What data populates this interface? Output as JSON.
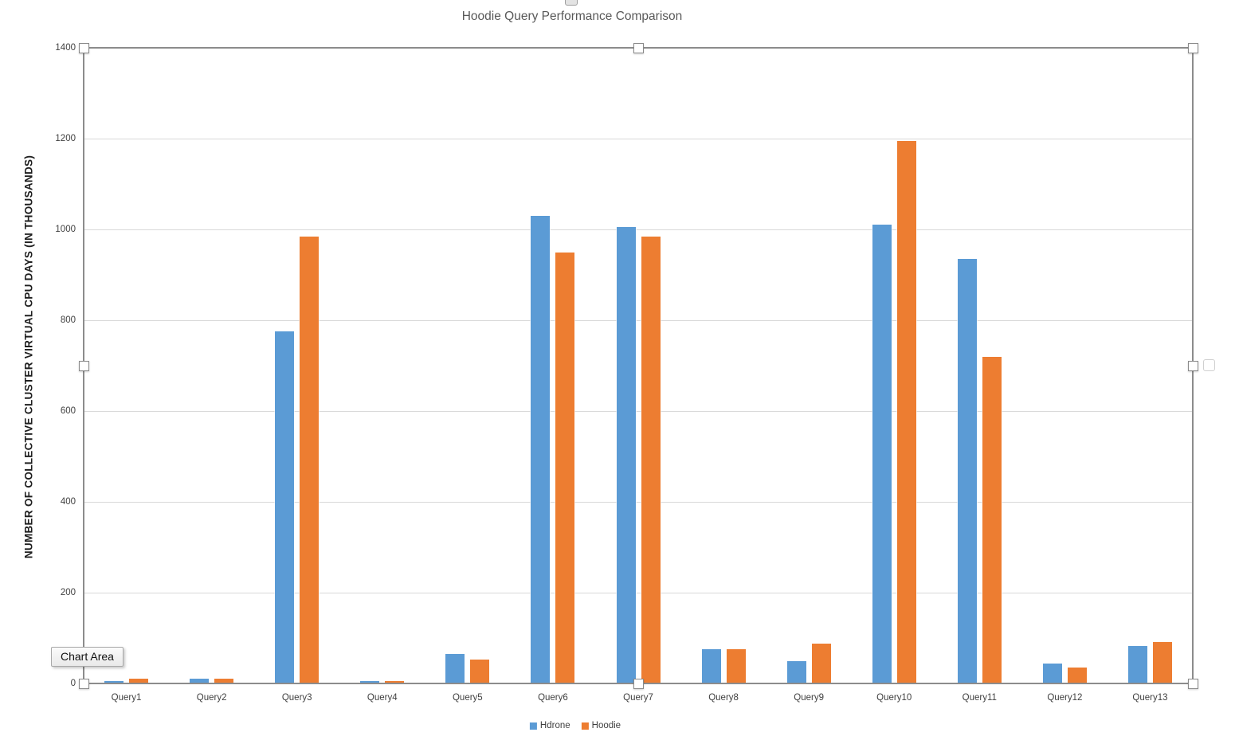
{
  "title": "Hoodie Query Performance Comparison",
  "tooltip": {
    "label": "Chart Area"
  },
  "colors": {
    "hdrone": "#5B9BD5",
    "hoodie": "#ED7D31",
    "title_text": "#595959",
    "axis_text": "#404040",
    "gridline": "#D9D9D9",
    "axis_line": "#7F7F7F",
    "selection_border": "#8C8C8C"
  },
  "chart_data": {
    "type": "bar",
    "title": "Hoodie Query Performance Comparison",
    "xlabel": "",
    "ylabel": "NUMBER OF COLLECTIVE CLUSTER VIRTUAL CPU DAYS (IN THOUSANDS)",
    "categories": [
      "Query1",
      "Query2",
      "Query3",
      "Query4",
      "Query5",
      "Query6",
      "Query7",
      "Query8",
      "Query9",
      "Query10",
      "Query11",
      "Query12",
      "Query13"
    ],
    "series": [
      {
        "name": "Hdrone",
        "color": "#5B9BD5",
        "values": [
          5,
          10,
          775,
          5,
          65,
          1030,
          1005,
          75,
          50,
          1010,
          935,
          44,
          83
        ]
      },
      {
        "name": "Hoodie",
        "color": "#ED7D31",
        "values": [
          10,
          10,
          985,
          5,
          52,
          950,
          985,
          75,
          88,
          1195,
          720,
          35,
          91
        ]
      }
    ],
    "ylim": [
      0,
      1400
    ],
    "yticks": [
      0,
      200,
      400,
      600,
      800,
      1000,
      1200,
      1400
    ],
    "grid": true,
    "legend_position": "bottom"
  }
}
